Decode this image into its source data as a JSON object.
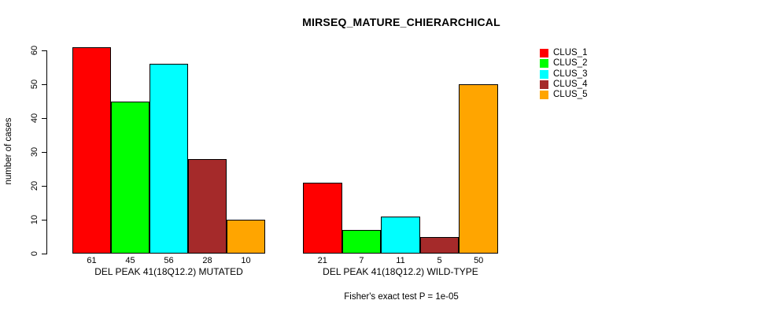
{
  "title": "MIRSEQ_MATURE_CHIERARCHICAL",
  "footer": "Fisher's exact test P = 1e-05",
  "chart_data": {
    "type": "bar",
    "title": "MIRSEQ_MATURE_CHIERARCHICAL",
    "xlabel": "",
    "ylabel": "number of cases",
    "ylim": [
      0,
      60
    ],
    "yticks": [
      0,
      10,
      20,
      30,
      40,
      50,
      60
    ],
    "grid": false,
    "legend_position": "top-right",
    "value_labels_shown": true,
    "categories": [
      "DEL PEAK 41(18Q12.2) MUTATED",
      "DEL PEAK 41(18Q12.2) WILD-TYPE"
    ],
    "series": [
      {
        "name": "CLUS_1",
        "color": "#FF0000",
        "values": [
          61,
          21
        ]
      },
      {
        "name": "CLUS_2",
        "color": "#00FF00",
        "values": [
          45,
          7
        ]
      },
      {
        "name": "CLUS_3",
        "color": "#00FFFF",
        "values": [
          56,
          11
        ]
      },
      {
        "name": "CLUS_4",
        "color": "#A52A2A",
        "values": [
          28,
          5
        ]
      },
      {
        "name": "CLUS_5",
        "color": "#FFA500",
        "values": [
          10,
          50
        ]
      }
    ],
    "annotation": "Fisher's exact test P = 1e-05"
  }
}
